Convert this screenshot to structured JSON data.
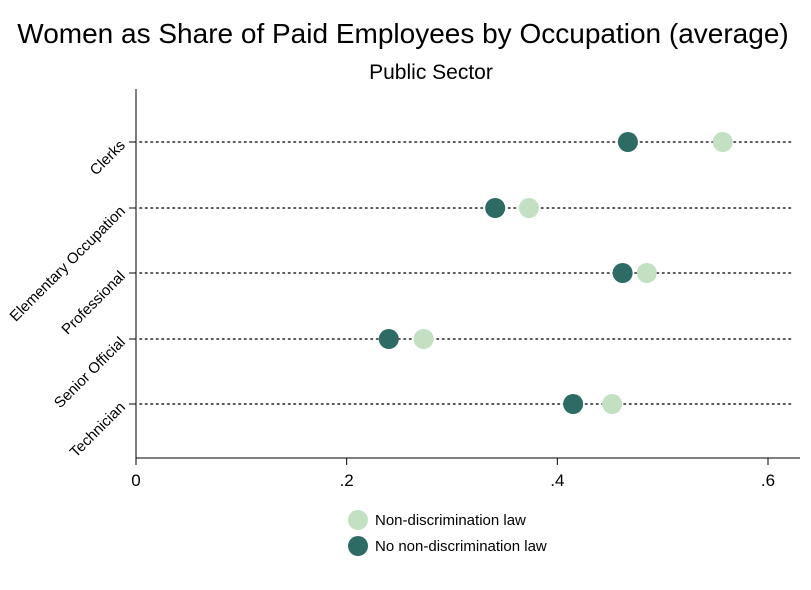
{
  "chart_data": {
    "type": "scatter",
    "title": "Women as Share of Paid Employees by Occupation (average)",
    "subtitle": "Public Sector",
    "xlabel": "",
    "ylabel": "",
    "xlim": [
      0,
      0.62
    ],
    "xticks": [
      0,
      0.2,
      0.4,
      0.6
    ],
    "xtick_labels": [
      "0",
      ".2",
      ".4",
      ".6"
    ],
    "grid": false,
    "legend_position": "bottom-center",
    "categories": [
      "Clerks",
      "Elementary Occupation",
      "Professional",
      "Senior Official",
      "Technician"
    ],
    "series": [
      {
        "name": "Non-discrimination law",
        "color": "#c3e0c3",
        "values": [
          0.557,
          0.373,
          0.485,
          0.273,
          0.452
        ]
      },
      {
        "name": "No non-discrimination law",
        "color": "#2e6b64",
        "values": [
          0.467,
          0.341,
          0.462,
          0.24,
          0.415
        ]
      }
    ]
  }
}
